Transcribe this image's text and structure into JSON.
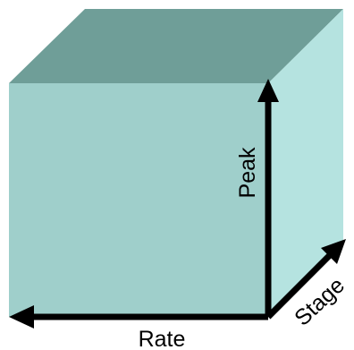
{
  "colors": {
    "front_face": "#9fcfcb",
    "top_face": "#6f9e98",
    "side_face": "#b5e3e0",
    "arrow": "#000000"
  },
  "axes": {
    "peak_label": "Peak",
    "rate_label": "Rate",
    "stage_label": "Stage"
  }
}
